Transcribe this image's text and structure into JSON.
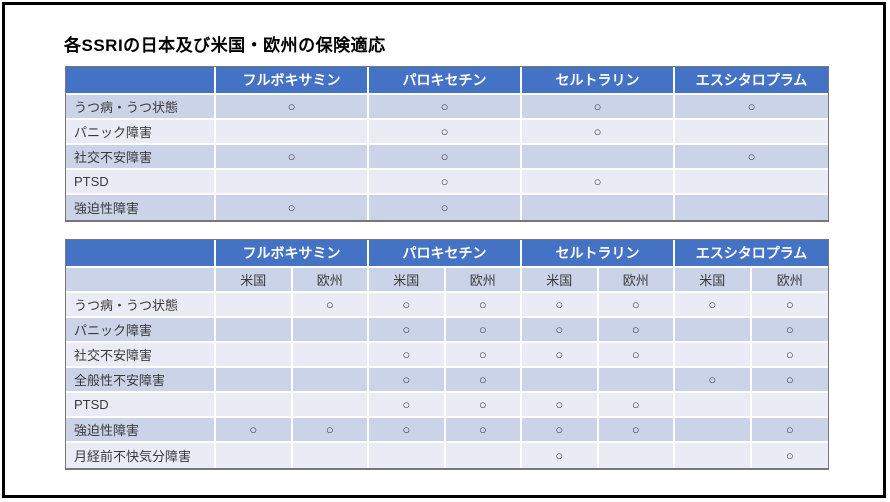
{
  "title": "各SSRIの日本及び米国・欧州の保険適応",
  "mark_glyph": "○",
  "colors": {
    "header_bg": "#4472C4",
    "header_text": "#FFFFFF",
    "band_dark": "#CBD3E9",
    "band_light": "#E9EBF5",
    "body_text": "#3A3A3A",
    "table_outline": "#777777",
    "slide_frame": "#000000"
  },
  "table_japan": {
    "drugs": [
      "フルボキサミン",
      "パロキセチン",
      "セルトラリン",
      "エスシタロプラム"
    ],
    "rows": [
      {
        "label": "うつ病・うつ状態",
        "marks": [
          1,
          1,
          1,
          1
        ]
      },
      {
        "label": "パニック障害",
        "marks": [
          0,
          1,
          1,
          0
        ]
      },
      {
        "label": "社交不安障害",
        "marks": [
          1,
          1,
          0,
          1
        ]
      },
      {
        "label": "PTSD",
        "marks": [
          0,
          1,
          1,
          0
        ]
      },
      {
        "label": "強迫性障害",
        "marks": [
          1,
          1,
          0,
          0
        ]
      }
    ]
  },
  "table_us_eu": {
    "drugs": [
      "フルボキサミン",
      "パロキセチン",
      "セルトラリン",
      "エスシタロプラム"
    ],
    "regions": [
      "米国",
      "欧州"
    ],
    "rows": [
      {
        "label": "うつ病・うつ状態",
        "marks": [
          0,
          1,
          1,
          1,
          1,
          1,
          1,
          1
        ]
      },
      {
        "label": "パニック障害",
        "marks": [
          0,
          0,
          1,
          1,
          1,
          1,
          0,
          1
        ]
      },
      {
        "label": "社交不安障害",
        "marks": [
          0,
          0,
          1,
          1,
          1,
          1,
          0,
          1
        ]
      },
      {
        "label": "全般性不安障害",
        "marks": [
          0,
          0,
          1,
          1,
          0,
          0,
          1,
          1
        ]
      },
      {
        "label": "PTSD",
        "marks": [
          0,
          0,
          1,
          1,
          1,
          1,
          0,
          0
        ]
      },
      {
        "label": "強迫性障害",
        "marks": [
          1,
          1,
          1,
          1,
          1,
          1,
          0,
          1
        ]
      },
      {
        "label": "月経前不快気分障害",
        "marks": [
          0,
          0,
          0,
          0,
          1,
          0,
          0,
          1
        ]
      }
    ]
  }
}
